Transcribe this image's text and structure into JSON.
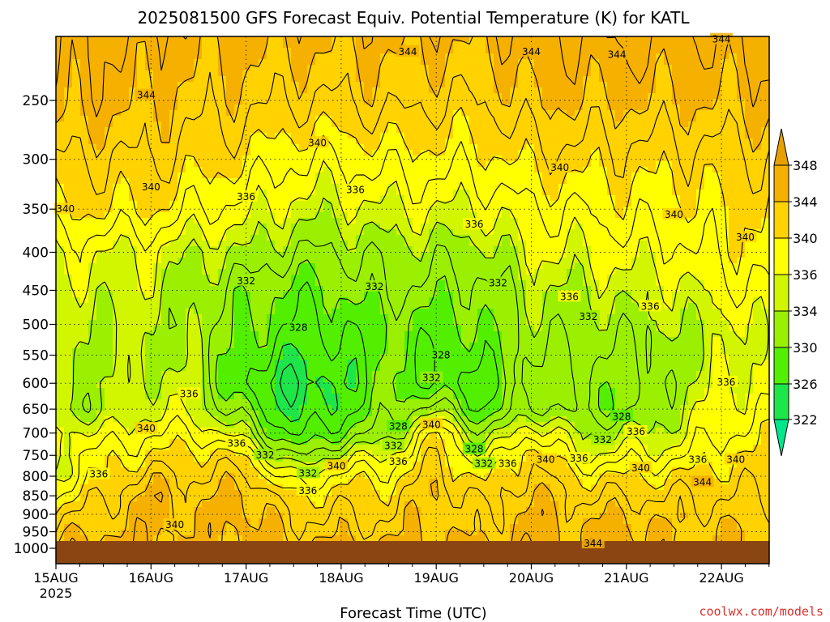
{
  "chart_data": {
    "type": "heatmap",
    "title": "2025081500 GFS Forecast Equiv. Potential Temperature (K) for KATL",
    "xlabel": "Forecast Time (UTC)",
    "ylabel": "",
    "credit": "coolwx.com/models",
    "x_ticks": [
      {
        "label": "15AUG",
        "sub": "2025",
        "day": 0
      },
      {
        "label": "16AUG",
        "sub": "",
        "day": 1
      },
      {
        "label": "17AUG",
        "sub": "",
        "day": 2
      },
      {
        "label": "18AUG",
        "sub": "",
        "day": 3
      },
      {
        "label": "19AUG",
        "sub": "",
        "day": 4
      },
      {
        "label": "20AUG",
        "sub": "",
        "day": 5
      },
      {
        "label": "21AUG",
        "sub": "",
        "day": 6
      },
      {
        "label": "22AUG",
        "sub": "",
        "day": 7
      }
    ],
    "xlim_days": [
      0,
      7.5
    ],
    "y_ticks": [
      "250",
      "300",
      "350",
      "400",
      "450",
      "500",
      "550",
      "600",
      "650",
      "700",
      "750",
      "800",
      "850",
      "900",
      "950",
      "1000"
    ],
    "y_scale": "log",
    "ylim_hpa": [
      200,
      1000
    ],
    "grid": true,
    "surface_color": "#8b4513",
    "colorbar": {
      "levels": [
        "322",
        "326",
        "330",
        "334",
        "336",
        "340",
        "344",
        "348"
      ],
      "colors": [
        "#00e68a",
        "#1ee64a",
        "#52f000",
        "#9af000",
        "#d2f500",
        "#ffff00",
        "#ffd200",
        "#f5b000",
        "#e8a000"
      ],
      "extend": "both"
    },
    "profile_days": [
      0,
      0.5,
      1,
      1.5,
      2,
      2.5,
      3,
      3.5,
      4,
      4.5,
      5,
      5.5,
      6,
      6.5,
      7,
      7.5
    ],
    "profile_pressure": [
      200,
      250,
      300,
      350,
      400,
      450,
      500,
      550,
      600,
      650,
      700,
      750,
      800,
      850,
      900,
      950,
      975
    ],
    "theta_e": [
      [
        346,
        345,
        342,
        340,
        337,
        335,
        334,
        334,
        334,
        334,
        337,
        337,
        336,
        338,
        341,
        343,
        344
      ],
      [
        346,
        345,
        342,
        340,
        336,
        335,
        334,
        334,
        334,
        333,
        336,
        339,
        340,
        342,
        343,
        344,
        345
      ],
      [
        346,
        344,
        342,
        340,
        336,
        335,
        334,
        334,
        335,
        336,
        338,
        340,
        343,
        345,
        345,
        345,
        345
      ],
      [
        345,
        343,
        341,
        338,
        334,
        333,
        333,
        333,
        334,
        335,
        338,
        341,
        342,
        343,
        344,
        344,
        344
      ],
      [
        345,
        343,
        340,
        337,
        334,
        331,
        330,
        329,
        327,
        330,
        334,
        340,
        343,
        345,
        345,
        345,
        345
      ],
      [
        345,
        342,
        338,
        335,
        332,
        329,
        328,
        326,
        324,
        325,
        327,
        331,
        336,
        340,
        342,
        343,
        344
      ],
      [
        345,
        342,
        338,
        335,
        332,
        330,
        328,
        327,
        326,
        327,
        330,
        335,
        339,
        341,
        342,
        343,
        344
      ],
      [
        345,
        343,
        339,
        336,
        333,
        332,
        330,
        330,
        330,
        331,
        333,
        336,
        339,
        341,
        342,
        343,
        344
      ],
      [
        345,
        342,
        339,
        336,
        333,
        331,
        329,
        328,
        328,
        333,
        340,
        342,
        343,
        344,
        344,
        344,
        344
      ],
      [
        345,
        342,
        339,
        336,
        333,
        331,
        330,
        329,
        327,
        328,
        332,
        336,
        339,
        341,
        342,
        343,
        344
      ],
      [
        346,
        344,
        341,
        338,
        336,
        334,
        333,
        332,
        332,
        333,
        338,
        342,
        343,
        344,
        345,
        345,
        345
      ],
      [
        346,
        344,
        341,
        338,
        336,
        334,
        333,
        332,
        331,
        331,
        334,
        336,
        340,
        342,
        343,
        344,
        344
      ],
      [
        347,
        344,
        341,
        339,
        337,
        335,
        333,
        332,
        331,
        331,
        334,
        337,
        340,
        342,
        344,
        345,
        345
      ],
      [
        346,
        344,
        341,
        339,
        337,
        335,
        334,
        333,
        333,
        334,
        335,
        337,
        340,
        342,
        343,
        344,
        344
      ],
      [
        346,
        344,
        341,
        340,
        339,
        337,
        335,
        335,
        336,
        337,
        338,
        340,
        341,
        342,
        343,
        344,
        344
      ],
      [
        347,
        345,
        342,
        340,
        339,
        338,
        337,
        337,
        337,
        338,
        339,
        340,
        341,
        342,
        343,
        344,
        344
      ]
    ],
    "contour_labels": [
      {
        "text": "344",
        "day": 3.7,
        "p": 215
      },
      {
        "text": "344",
        "day": 5.0,
        "p": 215
      },
      {
        "text": "344",
        "day": 5.9,
        "p": 217
      },
      {
        "text": "344",
        "day": 7.0,
        "p": 207
      },
      {
        "text": "344",
        "day": 0.95,
        "p": 246
      },
      {
        "text": "340",
        "day": 2.75,
        "p": 285
      },
      {
        "text": "340",
        "day": 5.3,
        "p": 308
      },
      {
        "text": "340",
        "day": 1.0,
        "p": 327
      },
      {
        "text": "340",
        "day": 0.1,
        "p": 350
      },
      {
        "text": "340",
        "day": 6.5,
        "p": 356
      },
      {
        "text": "340",
        "day": 7.25,
        "p": 382
      },
      {
        "text": "336",
        "day": 2.0,
        "p": 337
      },
      {
        "text": "336",
        "day": 3.15,
        "p": 330
      },
      {
        "text": "336",
        "day": 4.4,
        "p": 367
      },
      {
        "text": "336",
        "day": 5.4,
        "p": 459
      },
      {
        "text": "336",
        "day": 6.25,
        "p": 473
      },
      {
        "text": "336",
        "day": 7.05,
        "p": 598
      },
      {
        "text": "336",
        "day": 1.4,
        "p": 620
      },
      {
        "text": "336",
        "day": 6.1,
        "p": 697
      },
      {
        "text": "336",
        "day": 0.45,
        "p": 795
      },
      {
        "text": "336",
        "day": 1.9,
        "p": 723
      },
      {
        "text": "336",
        "day": 2.65,
        "p": 837
      },
      {
        "text": "336",
        "day": 3.6,
        "p": 765
      },
      {
        "text": "336",
        "day": 4.75,
        "p": 770
      },
      {
        "text": "336",
        "day": 5.5,
        "p": 757
      },
      {
        "text": "336",
        "day": 6.75,
        "p": 760
      },
      {
        "text": "332",
        "day": 2.0,
        "p": 437
      },
      {
        "text": "332",
        "day": 3.35,
        "p": 445
      },
      {
        "text": "332",
        "day": 4.65,
        "p": 440
      },
      {
        "text": "332",
        "day": 5.6,
        "p": 488
      },
      {
        "text": "332",
        "day": 2.2,
        "p": 750
      },
      {
        "text": "332",
        "day": 2.65,
        "p": 793
      },
      {
        "text": "332",
        "day": 3.55,
        "p": 728
      },
      {
        "text": "332",
        "day": 4.5,
        "p": 770
      },
      {
        "text": "332",
        "day": 3.95,
        "p": 590
      },
      {
        "text": "332",
        "day": 5.75,
        "p": 715
      },
      {
        "text": "328",
        "day": 2.55,
        "p": 505
      },
      {
        "text": "328",
        "day": 4.05,
        "p": 550
      },
      {
        "text": "328",
        "day": 3.6,
        "p": 686
      },
      {
        "text": "328",
        "day": 4.4,
        "p": 736
      },
      {
        "text": "328",
        "day": 5.95,
        "p": 665
      },
      {
        "text": "340",
        "day": 0.95,
        "p": 690
      },
      {
        "text": "340",
        "day": 2.95,
        "p": 775
      },
      {
        "text": "340",
        "day": 3.95,
        "p": 682
      },
      {
        "text": "340",
        "day": 5.15,
        "p": 760
      },
      {
        "text": "340",
        "day": 6.15,
        "p": 780
      },
      {
        "text": "340",
        "day": 7.15,
        "p": 760
      },
      {
        "text": "340",
        "day": 1.25,
        "p": 930
      },
      {
        "text": "344",
        "day": 6.8,
        "p": 815
      },
      {
        "text": "344",
        "day": 5.65,
        "p": 985
      }
    ]
  }
}
